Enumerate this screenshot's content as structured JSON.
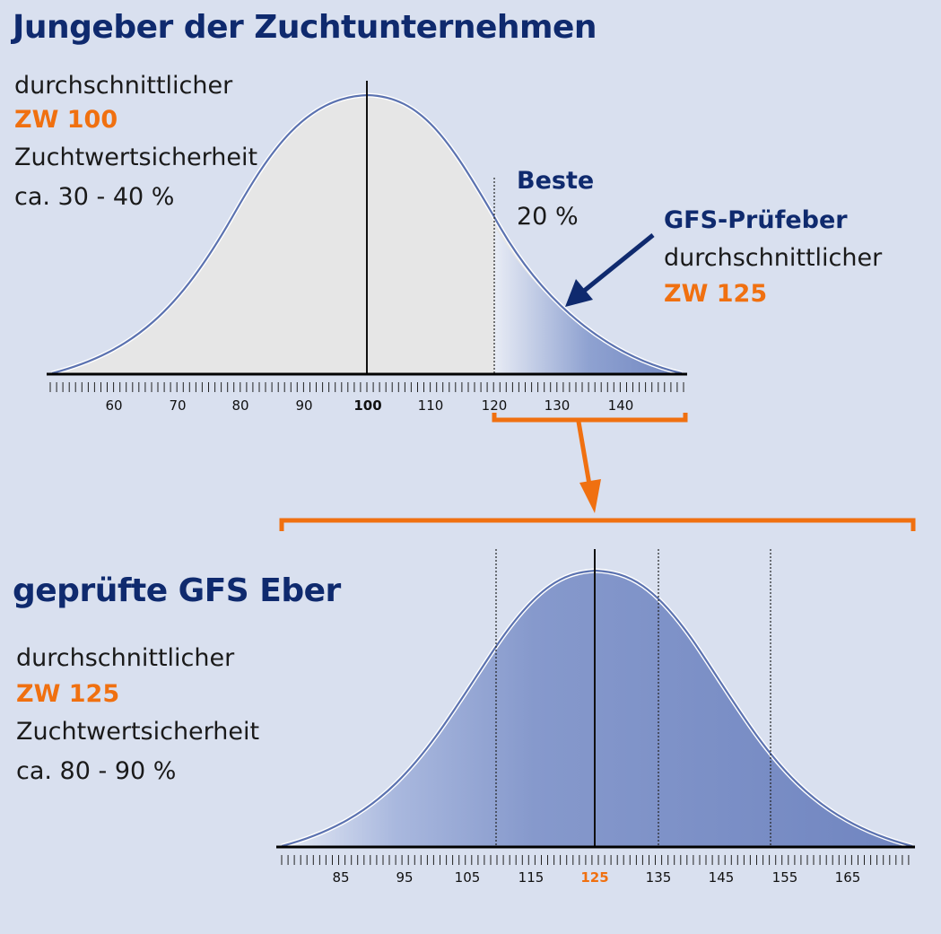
{
  "top": {
    "title": "Jungeber der Zuchtunternehmen",
    "desc_line1": "durchschnittlicher",
    "zw": "ZW 100",
    "desc_line3": "Zuchtwertsicherheit",
    "desc_line4": "ca. 30 - 40 %",
    "beste_label": "Beste",
    "beste_value": "20 %",
    "pruef_title": "GFS-Prüfeber",
    "pruef_line2": "durchschnittlicher",
    "pruef_zw": "ZW 125",
    "axis_labels": [
      "60",
      "70",
      "80",
      "90",
      "100",
      "110",
      "120",
      "130",
      "140"
    ]
  },
  "bottom": {
    "title": "geprüfte GFS Eber",
    "desc_line1": "durchschnittlicher",
    "zw": "ZW 125",
    "desc_line3": "Zuchtwertsicherheit",
    "desc_line4": "ca. 80 - 90 %",
    "axis_labels": [
      "85",
      "95",
      "105",
      "115",
      "125",
      "135",
      "145",
      "155",
      "165"
    ]
  },
  "colors": {
    "background": "#d9e0ef",
    "navy": "#0f2a6e",
    "orange": "#f07010",
    "curve_fill_grey": "#e6e6e6",
    "curve_fill_blue": "#7a8fc4",
    "curve_stroke": "#5b72b0"
  }
}
